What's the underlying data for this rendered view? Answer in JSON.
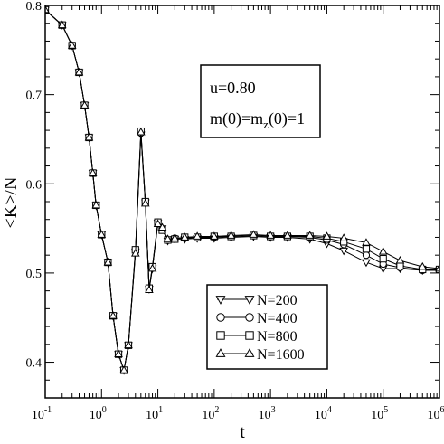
{
  "chart_data": {
    "type": "line",
    "title": "",
    "xlabel": "t",
    "ylabel": "<K>/N",
    "xscale": "log",
    "xlim": [
      0.1,
      1000000
    ],
    "ylim": [
      0.36,
      0.8
    ],
    "x_ticks": [
      {
        "base": "10",
        "exp": "-1",
        "value": 0.1
      },
      {
        "base": "10",
        "exp": "0",
        "value": 1
      },
      {
        "base": "10",
        "exp": "1",
        "value": 10
      },
      {
        "base": "10",
        "exp": "2",
        "value": 100
      },
      {
        "base": "10",
        "exp": "3",
        "value": 1000
      },
      {
        "base": "10",
        "exp": "4",
        "value": 10000
      },
      {
        "base": "10",
        "exp": "5",
        "value": 100000
      },
      {
        "base": "10",
        "exp": "6",
        "value": 1000000
      }
    ],
    "y_ticks": [
      "0.4",
      "0.5",
      "0.6",
      "0.7",
      "0.8"
    ],
    "annotation": {
      "line1": "u=0.80",
      "line2_main": "m(0)=m",
      "line2_sub": "z",
      "line2_tail": "(0)=1"
    },
    "legend_position": "bottom-right",
    "grid": false,
    "series": [
      {
        "name": "N=200",
        "marker": "triangle-down",
        "x": [
          0.1,
          0.2,
          0.3,
          0.4,
          0.5,
          0.6,
          0.7,
          0.8,
          1,
          1.3,
          1.6,
          2,
          2.5,
          3,
          4,
          5,
          6,
          7,
          8,
          10,
          12,
          15,
          20,
          30,
          50,
          100,
          200,
          500,
          1000,
          2000,
          5000,
          10000,
          20000,
          50000,
          100000,
          200000,
          500000,
          1000000
        ],
        "y": [
          0.795,
          0.778,
          0.755,
          0.725,
          0.688,
          0.652,
          0.612,
          0.576,
          0.543,
          0.512,
          0.452,
          0.409,
          0.391,
          0.419,
          0.524,
          0.655,
          0.579,
          0.482,
          0.505,
          0.556,
          0.55,
          0.536,
          0.538,
          0.538,
          0.539,
          0.539,
          0.54,
          0.541,
          0.54,
          0.54,
          0.538,
          0.533,
          0.525,
          0.512,
          0.505,
          0.505,
          0.503,
          0.503
        ]
      },
      {
        "name": "N=400",
        "marker": "circle",
        "x": [
          0.1,
          0.2,
          0.3,
          0.4,
          0.5,
          0.6,
          0.7,
          0.8,
          1,
          1.3,
          1.6,
          2,
          2.5,
          3,
          4,
          5,
          6,
          7,
          8,
          10,
          12,
          15,
          20,
          30,
          50,
          100,
          200,
          500,
          1000,
          2000,
          5000,
          10000,
          20000,
          50000,
          100000,
          200000,
          500000,
          1000000
        ],
        "y": [
          0.795,
          0.778,
          0.755,
          0.725,
          0.688,
          0.652,
          0.612,
          0.576,
          0.543,
          0.512,
          0.452,
          0.409,
          0.391,
          0.419,
          0.525,
          0.657,
          0.58,
          0.483,
          0.506,
          0.557,
          0.549,
          0.537,
          0.539,
          0.539,
          0.54,
          0.54,
          0.541,
          0.542,
          0.541,
          0.541,
          0.54,
          0.537,
          0.532,
          0.52,
          0.51,
          0.506,
          0.503,
          0.504
        ]
      },
      {
        "name": "N=800",
        "marker": "square",
        "x": [
          0.1,
          0.2,
          0.3,
          0.4,
          0.5,
          0.6,
          0.7,
          0.8,
          1,
          1.3,
          1.6,
          2,
          2.5,
          3,
          4,
          5,
          6,
          7,
          8,
          10,
          12,
          15,
          20,
          30,
          50,
          100,
          200,
          500,
          1000,
          2000,
          5000,
          10000,
          20000,
          50000,
          100000,
          200000,
          500000,
          1000000
        ],
        "y": [
          0.795,
          0.778,
          0.755,
          0.725,
          0.688,
          0.652,
          0.612,
          0.576,
          0.543,
          0.512,
          0.452,
          0.409,
          0.391,
          0.419,
          0.526,
          0.659,
          0.58,
          0.483,
          0.507,
          0.557,
          0.548,
          0.537,
          0.538,
          0.54,
          0.54,
          0.541,
          0.541,
          0.542,
          0.541,
          0.541,
          0.541,
          0.539,
          0.535,
          0.527,
          0.516,
          0.508,
          0.504,
          0.504
        ]
      },
      {
        "name": "N=1600",
        "marker": "triangle-up",
        "x": [
          0.1,
          0.2,
          0.3,
          0.4,
          0.5,
          0.6,
          0.7,
          0.8,
          1,
          1.3,
          1.6,
          2,
          2.5,
          3,
          4,
          5,
          6,
          7,
          8,
          10,
          12,
          15,
          20,
          30,
          50,
          100,
          200,
          500,
          1000,
          2000,
          5000,
          10000,
          20000,
          50000,
          100000,
          200000,
          500000,
          1000000
        ],
        "y": [
          0.795,
          0.778,
          0.755,
          0.725,
          0.688,
          0.652,
          0.612,
          0.576,
          0.543,
          0.512,
          0.452,
          0.409,
          0.391,
          0.419,
          0.522,
          0.658,
          0.578,
          0.481,
          0.505,
          0.555,
          0.551,
          0.538,
          0.539,
          0.54,
          0.541,
          0.541,
          0.542,
          0.543,
          0.542,
          0.542,
          0.542,
          0.541,
          0.539,
          0.534,
          0.524,
          0.514,
          0.507,
          0.505
        ]
      }
    ]
  }
}
